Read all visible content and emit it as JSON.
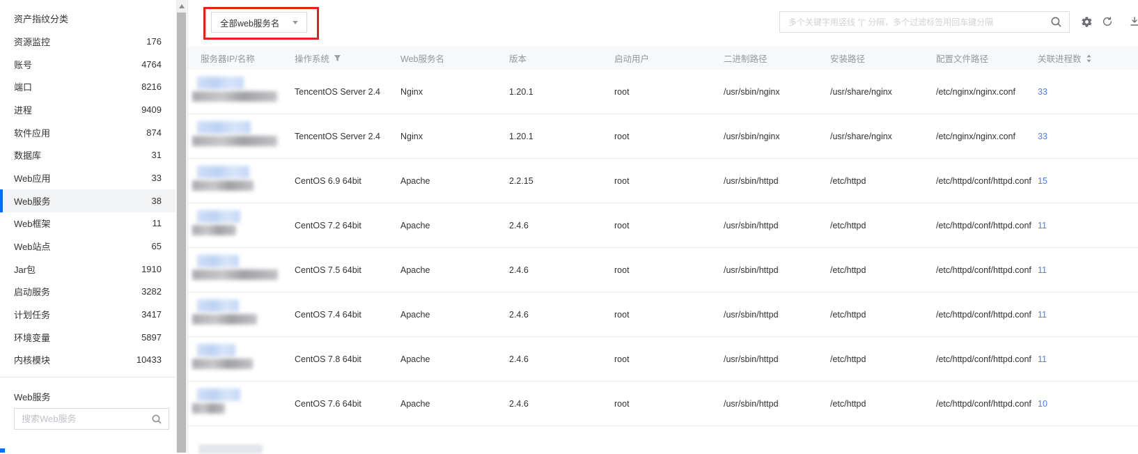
{
  "sidebar": {
    "title": "资产指纹分类",
    "items": [
      {
        "label": "资源监控",
        "count": "176",
        "selected": false
      },
      {
        "label": "账号",
        "count": "4764",
        "selected": false
      },
      {
        "label": "端口",
        "count": "8216",
        "selected": false
      },
      {
        "label": "进程",
        "count": "9409",
        "selected": false
      },
      {
        "label": "软件应用",
        "count": "874",
        "selected": false
      },
      {
        "label": "数据库",
        "count": "31",
        "selected": false
      },
      {
        "label": "Web应用",
        "count": "33",
        "selected": false
      },
      {
        "label": "Web服务",
        "count": "38",
        "selected": true
      },
      {
        "label": "Web框架",
        "count": "11",
        "selected": false
      },
      {
        "label": "Web站点",
        "count": "65",
        "selected": false
      },
      {
        "label": "Jar包",
        "count": "1910",
        "selected": false
      },
      {
        "label": "启动服务",
        "count": "3282",
        "selected": false
      },
      {
        "label": "计划任务",
        "count": "3417",
        "selected": false
      },
      {
        "label": "环境变量",
        "count": "5897",
        "selected": false
      },
      {
        "label": "内核模块",
        "count": "10433",
        "selected": false
      }
    ],
    "section_label": "Web服务",
    "search_placeholder": "搜索Web服务"
  },
  "toolbar": {
    "service_filter_value": "全部web服务名",
    "search_placeholder": "多个关键字用竖线 \"|\" 分隔，多个过滤标签用回车键分隔",
    "icons": [
      "search-icon",
      "gear-icon",
      "refresh-icon",
      "download-icon"
    ]
  },
  "table": {
    "columns": [
      {
        "label": "服务器IP/名称",
        "icon": null
      },
      {
        "label": "操作系统",
        "icon": "filter-icon"
      },
      {
        "label": "Web服务名",
        "icon": null
      },
      {
        "label": "版本",
        "icon": null
      },
      {
        "label": "启动用户",
        "icon": null
      },
      {
        "label": "二进制路径",
        "icon": null
      },
      {
        "label": "安装路径",
        "icon": null
      },
      {
        "label": "配置文件路径",
        "icon": null
      },
      {
        "label": "关联进程数",
        "icon": "sort-icon"
      }
    ],
    "rows": [
      {
        "server_redacted": true,
        "os": "TencentOS Server 2.4",
        "service": "Nginx",
        "version": "1.20.1",
        "user": "root",
        "binary_path": "/usr/sbin/nginx",
        "install_path": "/usr/share/nginx",
        "config_path": "/etc/nginx/nginx.conf",
        "process_count": "33"
      },
      {
        "server_redacted": true,
        "os": "TencentOS Server 2.4",
        "service": "Nginx",
        "version": "1.20.1",
        "user": "root",
        "binary_path": "/usr/sbin/nginx",
        "install_path": "/usr/share/nginx",
        "config_path": "/etc/nginx/nginx.conf",
        "process_count": "33"
      },
      {
        "server_redacted": true,
        "os": "CentOS 6.9 64bit",
        "service": "Apache",
        "version": "2.2.15",
        "user": "root",
        "binary_path": "/usr/sbin/httpd",
        "install_path": "/etc/httpd",
        "config_path": "/etc/httpd/conf/httpd.conf",
        "process_count": "15"
      },
      {
        "server_redacted": true,
        "os": "CentOS 7.2 64bit",
        "service": "Apache",
        "version": "2.4.6",
        "user": "root",
        "binary_path": "/usr/sbin/httpd",
        "install_path": "/etc/httpd",
        "config_path": "/etc/httpd/conf/httpd.conf",
        "process_count": "11"
      },
      {
        "server_redacted": true,
        "os": "CentOS 7.5 64bit",
        "service": "Apache",
        "version": "2.4.6",
        "user": "root",
        "binary_path": "/usr/sbin/httpd",
        "install_path": "/etc/httpd",
        "config_path": "/etc/httpd/conf/httpd.conf",
        "process_count": "11"
      },
      {
        "server_redacted": true,
        "os": "CentOS 7.4 64bit",
        "service": "Apache",
        "version": "2.4.6",
        "user": "root",
        "binary_path": "/usr/sbin/httpd",
        "install_path": "/etc/httpd",
        "config_path": "/etc/httpd/conf/httpd.conf",
        "process_count": "11"
      },
      {
        "server_redacted": true,
        "os": "CentOS 7.8 64bit",
        "service": "Apache",
        "version": "2.4.6",
        "user": "root",
        "binary_path": "/usr/sbin/httpd",
        "install_path": "/etc/httpd",
        "config_path": "/etc/httpd/conf/httpd.conf",
        "process_count": "11"
      },
      {
        "server_redacted": true,
        "os": "CentOS 7.6 64bit",
        "service": "Apache",
        "version": "2.4.6",
        "user": "root",
        "binary_path": "/usr/sbin/httpd",
        "install_path": "/etc/httpd",
        "config_path": "/etc/httpd/conf/httpd.conf",
        "process_count": "10"
      }
    ]
  },
  "colors": {
    "accent": "#006eff",
    "link": "#4a7dff",
    "annotation_box": "#e62117",
    "table_header_bg": "#f7f8fa"
  }
}
